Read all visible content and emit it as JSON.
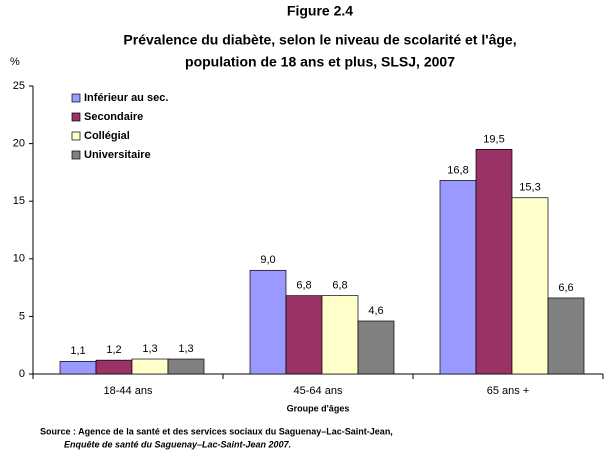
{
  "chart_data": {
    "type": "bar",
    "title": "Figure 2.4",
    "subtitle": [
      "Prévalence du diabète, selon le niveau de scolarité et l'âge,",
      "population de 18 ans et plus, SLSJ, 2007"
    ],
    "y_label": "%",
    "x_label": "Groupe d'âges",
    "categories": [
      "18-44 ans",
      "45-64 ans",
      "65 ans +"
    ],
    "series": [
      {
        "name": "Inférieur au sec.",
        "color": "#9999ff",
        "values": [
          1.1,
          9.0,
          16.8
        ],
        "value_labels": [
          "1,1",
          "9,0",
          "16,8"
        ]
      },
      {
        "name": "Secondaire",
        "color": "#993366",
        "values": [
          1.2,
          6.8,
          19.5
        ],
        "value_labels": [
          "1,2",
          "6,8",
          "19,5"
        ]
      },
      {
        "name": "Collégial",
        "color": "#ffffcc",
        "values": [
          1.3,
          6.8,
          15.3
        ],
        "value_labels": [
          "1,3",
          "6,8",
          "15,3"
        ]
      },
      {
        "name": "Universitaire",
        "color": "#808080",
        "values": [
          1.3,
          4.6,
          6.6
        ],
        "value_labels": [
          "1,3",
          "4,6",
          "6,6"
        ]
      }
    ],
    "ylim": [
      0,
      25
    ],
    "yticks": [
      0,
      5,
      10,
      15,
      20,
      25
    ],
    "grid": false,
    "legend": "upper left",
    "source": [
      "Source : Agence de la santé et des services sociaux du Saguenay–Lac-Saint-Jean,",
      "Enquête de santé du Saguenay–Lac-Saint-Jean 2007."
    ]
  }
}
